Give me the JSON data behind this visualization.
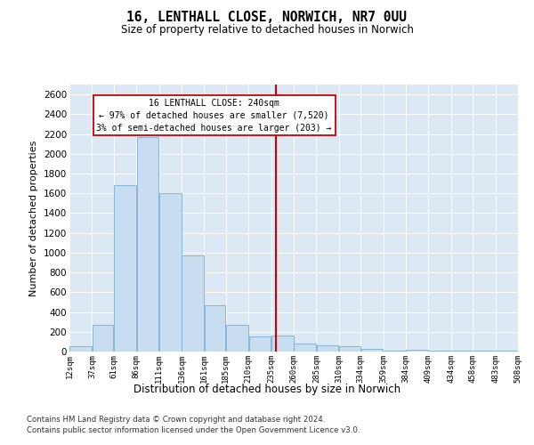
{
  "title1": "16, LENTHALL CLOSE, NORWICH, NR7 0UU",
  "title2": "Size of property relative to detached houses in Norwich",
  "xlabel": "Distribution of detached houses by size in Norwich",
  "ylabel": "Number of detached properties",
  "bar_color": "#c9ddf0",
  "bar_edge_color": "#7aadd4",
  "background_color": "#dce9f5",
  "annotation_title": "16 LENTHALL CLOSE: 240sqm",
  "annotation_line1": "← 97% of detached houses are smaller (7,520)",
  "annotation_line2": "3% of semi-detached houses are larger (203) →",
  "vline_color": "#cc0000",
  "property_sqm": 240,
  "bin_edges": [
    12,
    37,
    61,
    86,
    111,
    136,
    161,
    185,
    210,
    235,
    260,
    285,
    310,
    334,
    359,
    384,
    409,
    434,
    458,
    483,
    508
  ],
  "counts": [
    50,
    270,
    1680,
    2170,
    1600,
    975,
    470,
    270,
    155,
    160,
    80,
    65,
    55,
    30,
    5,
    20,
    5,
    5,
    5,
    5
  ],
  "ylim": [
    0,
    2700
  ],
  "yticks": [
    0,
    200,
    400,
    600,
    800,
    1000,
    1200,
    1400,
    1600,
    1800,
    2000,
    2200,
    2400,
    2600
  ],
  "footer1": "Contains HM Land Registry data © Crown copyright and database right 2024.",
  "footer2": "Contains public sector information licensed under the Open Government Licence v3.0."
}
